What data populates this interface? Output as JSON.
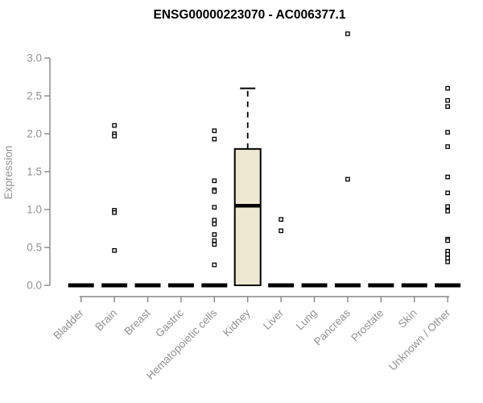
{
  "figure": {
    "title": "ENSG00000223070 - AC006377.1"
  },
  "chart_data": {
    "type": "boxplot",
    "title": "ENSG00000223070 - AC006377.1",
    "xlabel": "",
    "ylabel": "Expression",
    "ylim": [
      0.0,
      3.0
    ],
    "yticks": [
      0.0,
      0.5,
      1.0,
      1.5,
      2.0,
      2.5,
      3.0
    ],
    "grid": false,
    "legend": "none",
    "categories": [
      "Bladder",
      "Brain",
      "Breast",
      "Gastric",
      "Hematopoietic cells",
      "Kidney",
      "Liver",
      "Lung",
      "Pancreas",
      "Prostate",
      "Skin",
      "Unknown / Other"
    ],
    "boxes": [
      {
        "category": "Bladder",
        "q1": 0,
        "median": 0,
        "q3": 0,
        "whisker_low": 0,
        "whisker_high": 0,
        "outliers": []
      },
      {
        "category": "Brain",
        "q1": 0,
        "median": 0,
        "q3": 0,
        "whisker_low": 0,
        "whisker_high": 0,
        "outliers": [
          2.11,
          2.0,
          1.97,
          0.99,
          0.96,
          0.46
        ]
      },
      {
        "category": "Breast",
        "q1": 0,
        "median": 0,
        "q3": 0,
        "whisker_low": 0,
        "whisker_high": 0,
        "outliers": []
      },
      {
        "category": "Gastric",
        "q1": 0,
        "median": 0,
        "q3": 0,
        "whisker_low": 0,
        "whisker_high": 0,
        "outliers": []
      },
      {
        "category": "Hematopoietic cells",
        "q1": 0,
        "median": 0,
        "q3": 0,
        "whisker_low": 0,
        "whisker_high": 0,
        "outliers": [
          2.04,
          1.93,
          1.38,
          1.26,
          1.24,
          1.03,
          0.86,
          0.81,
          0.67,
          0.59,
          0.54,
          0.27
        ]
      },
      {
        "category": "Kidney",
        "q1": 0,
        "median": 1.05,
        "q3": 1.8,
        "whisker_low": 0,
        "whisker_high": 2.6,
        "outliers": []
      },
      {
        "category": "Liver",
        "q1": 0,
        "median": 0,
        "q3": 0,
        "whisker_low": 0,
        "whisker_high": 0,
        "outliers": [
          0.87,
          0.72
        ]
      },
      {
        "category": "Lung",
        "q1": 0,
        "median": 0,
        "q3": 0,
        "whisker_low": 0,
        "whisker_high": 0,
        "outliers": []
      },
      {
        "category": "Pancreas",
        "q1": 0,
        "median": 0,
        "q3": 0,
        "whisker_low": 0,
        "whisker_high": 0,
        "outliers": [
          3.32,
          1.4
        ]
      },
      {
        "category": "Prostate",
        "q1": 0,
        "median": 0,
        "q3": 0,
        "whisker_low": 0,
        "whisker_high": 0,
        "outliers": []
      },
      {
        "category": "Skin",
        "q1": 0,
        "median": 0,
        "q3": 0,
        "whisker_low": 0,
        "whisker_high": 0,
        "outliers": []
      },
      {
        "category": "Unknown / Other",
        "q1": 0,
        "median": 0,
        "q3": 0,
        "whisker_low": 0,
        "whisker_high": 0,
        "outliers": [
          2.6,
          2.44,
          2.36,
          2.02,
          1.83,
          1.43,
          1.22,
          1.04,
          0.98,
          0.61,
          0.59,
          0.45,
          0.41,
          0.36,
          0.31
        ]
      }
    ],
    "colors": {
      "box_fill": "#ede8d1",
      "box_border": "#000000",
      "median": "#000000",
      "outlier": "#000000",
      "axis": "#878787",
      "tick_label": "#919191",
      "title": "#000000",
      "background": "#ffffff"
    }
  }
}
